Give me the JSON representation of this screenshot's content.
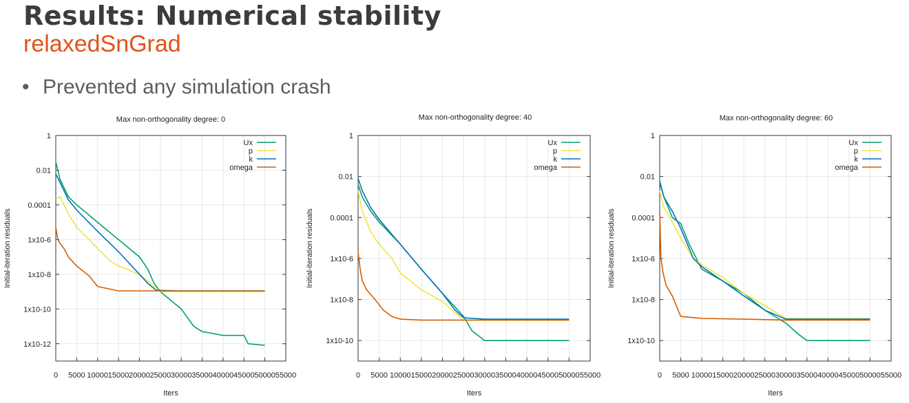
{
  "slide": {
    "title": "Results: Numerical stability",
    "subtitle": "relaxedSnGrad",
    "bullets": [
      "Prevented any simulation crash"
    ]
  },
  "chart_data": [
    {
      "type": "line",
      "title": "Max non-orthogonality degree: 0",
      "xlabel": "Iters",
      "ylabel": "Initial-iteration residuals",
      "yscale": "log",
      "xlim": [
        0,
        55000
      ],
      "ylim": [
        1e-13,
        1
      ],
      "xticks": [
        "0",
        "5000",
        "10000",
        "15000",
        "20000",
        "25000",
        "30000",
        "35000",
        "40000",
        "45000",
        "50000",
        "55000"
      ],
      "yticks": [
        {
          "value": 1,
          "label": "1"
        },
        {
          "value": 0.01,
          "label": "0.01"
        },
        {
          "value": 0.0001,
          "label": "0.0001"
        },
        {
          "value": 1e-06,
          "label": "1x10-6"
        },
        {
          "value": 1e-08,
          "label": "1x10-8"
        },
        {
          "value": 1e-10,
          "label": "1x10-10"
        },
        {
          "value": 1e-12,
          "label": "1x10-12"
        }
      ],
      "grid": true,
      "legend_position": "top-right",
      "series": [
        {
          "name": "Ux",
          "color": "#009e73",
          "x": [
            0,
            1000,
            3000,
            5000,
            10000,
            15000,
            20000,
            22000,
            23500,
            25000,
            30000,
            33000,
            35000,
            40000,
            45000,
            46000,
            50000
          ],
          "y": [
            0.03,
            0.003,
            0.0003,
            0.0001,
            1e-05,
            1e-06,
            1e-07,
            2e-08,
            3e-09,
            1e-09,
            1e-10,
            1e-11,
            5e-12,
            3e-12,
            3e-12,
            1e-12,
            8e-13
          ]
        },
        {
          "name": "p",
          "color": "#f0e442",
          "x": [
            0,
            1000,
            2000,
            3000,
            5000,
            8000,
            10000,
            13000,
            15000,
            20000,
            25000,
            30000,
            40000,
            50000
          ],
          "y": [
            0.0002,
            0.0003,
            0.0001,
            3e-05,
            5e-06,
            1e-06,
            3e-07,
            6e-08,
            3e-08,
            1e-08,
            1e-09,
            1e-09,
            1e-09,
            1e-09
          ]
        },
        {
          "name": "k",
          "color": "#0072b2",
          "x": [
            0,
            1000,
            3000,
            5000,
            10000,
            15000,
            20000,
            22000,
            24000,
            30000,
            40000,
            50000
          ],
          "y": [
            0.006,
            0.002,
            0.0002,
            5e-05,
            3e-06,
            2e-07,
            1e-08,
            3e-09,
            1.2e-09,
            1.1e-09,
            1.1e-09,
            1.1e-09
          ]
        },
        {
          "name": "omega",
          "color": "#d55e00",
          "x": [
            0,
            500,
            1000,
            2000,
            3000,
            5000,
            8000,
            10000,
            15000,
            20000,
            30000,
            40000,
            50000
          ],
          "y": [
            5e-06,
            1e-06,
            6e-07,
            3e-07,
            1e-07,
            3e-08,
            8e-09,
            2e-09,
            1.1e-09,
            1.1e-09,
            1.1e-09,
            1.1e-09,
            1.1e-09
          ]
        }
      ]
    },
    {
      "type": "line",
      "title": "Max non-orthogonality degree: 40",
      "xlabel": "Iters",
      "ylabel": "Initial-iteration residuals",
      "yscale": "log",
      "xlim": [
        0,
        55000
      ],
      "ylim": [
        1e-11,
        1
      ],
      "xticks": [
        "0",
        "5000",
        "10000",
        "15000",
        "20000",
        "25000",
        "30000",
        "35000",
        "40000",
        "45000",
        "50000",
        "55000"
      ],
      "yticks": [
        {
          "value": 1,
          "label": "1"
        },
        {
          "value": 0.01,
          "label": "0.01"
        },
        {
          "value": 0.0001,
          "label": "0.0001"
        },
        {
          "value": 1e-06,
          "label": "1x10-6"
        },
        {
          "value": 1e-08,
          "label": "1x10-8"
        },
        {
          "value": 1e-10,
          "label": "1x10-10"
        }
      ],
      "grid": true,
      "legend_position": "top-right",
      "series": [
        {
          "name": "Ux",
          "color": "#009e73",
          "x": [
            0,
            1000,
            3000,
            5000,
            10000,
            15000,
            20000,
            25000,
            27000,
            30000,
            35000,
            40000,
            45000,
            50000
          ],
          "y": [
            0.004,
            0.001,
            0.0002,
            6e-05,
            5e-06,
            3e-07,
            2e-08,
            1.5e-09,
            3e-10,
            1e-10,
            1e-10,
            1e-10,
            1e-10,
            1e-10
          ]
        },
        {
          "name": "p",
          "color": "#f0e442",
          "x": [
            0,
            1000,
            3000,
            5000,
            8000,
            10000,
            15000,
            20000,
            25000,
            30000,
            40000,
            50000
          ],
          "y": [
            0.002,
            0.0002,
            2e-05,
            5e-06,
            1e-06,
            2e-07,
            3e-08,
            8e-09,
            1e-09,
            1e-09,
            1e-09,
            1e-09
          ]
        },
        {
          "name": "k",
          "color": "#0072b2",
          "x": [
            0,
            1000,
            3000,
            5000,
            10000,
            15000,
            20000,
            23000,
            25000,
            30000,
            40000,
            50000
          ],
          "y": [
            0.008,
            0.002,
            0.0003,
            8e-05,
            5e-06,
            3e-07,
            2e-08,
            3e-09,
            1.3e-09,
            1.1e-09,
            1.1e-09,
            1.1e-09
          ]
        },
        {
          "name": "omega",
          "color": "#d55e00",
          "x": [
            0,
            500,
            1000,
            2000,
            4000,
            6000,
            8000,
            10000,
            15000,
            20000,
            30000,
            40000,
            50000
          ],
          "y": [
            2e-06,
            3e-07,
            8e-08,
            3e-08,
            1e-08,
            3e-09,
            1.5e-09,
            1.1e-09,
            1e-09,
            1e-09,
            1e-09,
            1e-09,
            1e-09
          ]
        }
      ]
    },
    {
      "type": "line",
      "title": "Max non-orthogonality degree: 60",
      "xlabel": "Iters",
      "ylabel": "Initial-iteration residuals",
      "yscale": "log",
      "xlim": [
        0,
        55000
      ],
      "ylim": [
        1e-11,
        1
      ],
      "xticks": [
        "0",
        "5000",
        "10000",
        "15000",
        "20000",
        "25000",
        "30000",
        "35000",
        "40000",
        "45000",
        "50000",
        "55000"
      ],
      "yticks": [
        {
          "value": 1,
          "label": "1"
        },
        {
          "value": 0.01,
          "label": "0.01"
        },
        {
          "value": 0.0001,
          "label": "0.0001"
        },
        {
          "value": 1e-06,
          "label": "1x10-6"
        },
        {
          "value": 1e-08,
          "label": "1x10-8"
        },
        {
          "value": 1e-10,
          "label": "1x10-10"
        }
      ],
      "grid": true,
      "legend_position": "top-right",
      "series": [
        {
          "name": "Ux",
          "color": "#009e73",
          "x": [
            0,
            1000,
            3000,
            5000,
            7000,
            10000,
            15000,
            20000,
            25000,
            30000,
            33000,
            35000,
            40000,
            45000,
            50000
          ],
          "y": [
            0.005,
            0.001,
            0.0001,
            5e-05,
            5e-06,
            3e-07,
            8e-08,
            2e-08,
            3e-09,
            7e-10,
            2e-10,
            1e-10,
            1e-10,
            1e-10,
            1e-10
          ]
        },
        {
          "name": "p",
          "color": "#f0e442",
          "x": [
            0,
            1000,
            3000,
            5000,
            8000,
            10000,
            15000,
            20000,
            25000,
            30000,
            40000,
            50000
          ],
          "y": [
            0.002,
            0.0003,
            6e-05,
            1e-05,
            1e-06,
            5e-07,
            1.2e-07,
            2e-08,
            5e-09,
            1.2e-09,
            1.2e-09,
            1.2e-09
          ]
        },
        {
          "name": "k",
          "color": "#0072b2",
          "x": [
            0,
            1000,
            3000,
            5000,
            8000,
            10000,
            15000,
            20000,
            25000,
            30000,
            40000,
            50000
          ],
          "y": [
            0.006,
            0.001,
            0.0002,
            3e-05,
            1e-06,
            4e-07,
            8e-08,
            1.5e-08,
            3e-09,
            1.1e-09,
            1.1e-09,
            1.1e-09
          ]
        },
        {
          "name": "omega",
          "color": "#d55e00",
          "x": [
            0,
            300,
            800,
            1500,
            3000,
            5000,
            10000,
            20000,
            30000,
            40000,
            50000
          ],
          "y": [
            0.0002,
            1e-06,
            2e-07,
            5e-08,
            1.5e-08,
            1.5e-09,
            1.2e-09,
            1.1e-09,
            1e-09,
            1e-09,
            1e-09
          ]
        }
      ]
    }
  ]
}
